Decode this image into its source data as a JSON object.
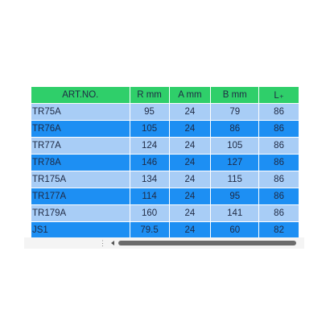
{
  "table": {
    "header": [
      "ART.NO.",
      "R mm",
      "A mm",
      "B mm",
      "L₊"
    ],
    "rows": [
      [
        "TR75A",
        95,
        24,
        79,
        86
      ],
      [
        "TR76A",
        105,
        24,
        86,
        86
      ],
      [
        "TR77A",
        124,
        24,
        105,
        86
      ],
      [
        "TR78A",
        146,
        24,
        127,
        86
      ],
      [
        "TR175A",
        134,
        24,
        115,
        86
      ],
      [
        "TR177A",
        114,
        24,
        95,
        86
      ],
      [
        "TR179A",
        160,
        24,
        141,
        86
      ],
      [
        "JS1",
        79.5,
        24,
        60,
        82
      ]
    ]
  }
}
